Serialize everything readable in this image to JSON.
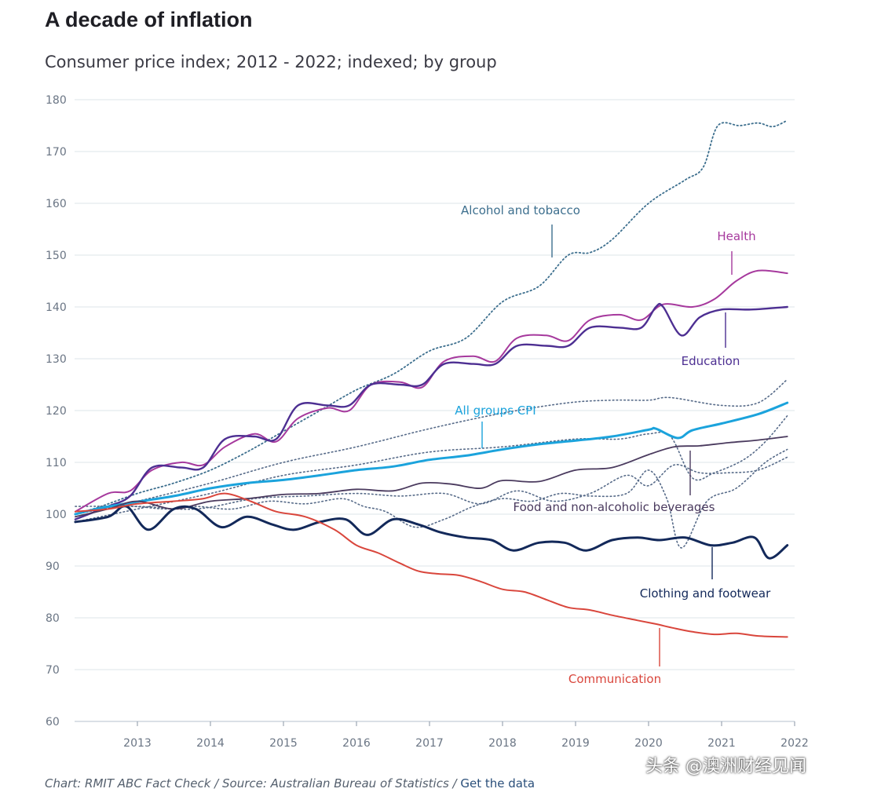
{
  "title": "A decade of inflation",
  "subtitle": "Consumer price index; 2012 - 2022; indexed; by group",
  "footer": {
    "source": "Chart: RMIT ABC Fact Check / Source: Australian Bureau of Statistics / ",
    "link": "Get the data"
  },
  "watermark": "头条 @澳洲财经见闻",
  "chart_data": {
    "type": "line",
    "title": "A decade of inflation",
    "subtitle": "Consumer price index; 2012 - 2022; indexed; by group",
    "xlabel": "",
    "ylabel": "",
    "xlim": [
      2012.14,
      2022.0
    ],
    "ylim": [
      60,
      180
    ],
    "yticks": [
      60,
      70,
      80,
      90,
      100,
      110,
      120,
      130,
      140,
      150,
      160,
      170,
      180
    ],
    "xticks": [
      2013,
      2014,
      2015,
      2016,
      2017,
      2018,
      2019,
      2020,
      2021,
      2022
    ],
    "grid": true,
    "colors": {
      "alcohol": "#3d6f8e",
      "health": "#a6399d",
      "education": "#4d2f92",
      "cpi": "#1ba3dc",
      "food": "#4a3a5e",
      "clothing": "#13295a",
      "communication": "#d9463c",
      "other": "#566a88"
    },
    "series": [
      {
        "name": "Alcohol and tobacco",
        "color": "alcohol",
        "dash": "dotted",
        "labelled": true,
        "x": [
          2012.15,
          2012.5,
          2013.0,
          2013.5,
          2014.0,
          2014.5,
          2015.0,
          2015.5,
          2016.0,
          2016.5,
          2017.0,
          2017.5,
          2018.0,
          2018.5,
          2018.9,
          2019.2,
          2019.5,
          2020.0,
          2020.5,
          2020.75,
          2020.95,
          2021.25,
          2021.5,
          2021.7,
          2021.9
        ],
        "y": [
          100,
          101.5,
          104,
          106,
          108.5,
          112,
          116,
          120,
          124,
          127,
          131.5,
          134,
          141,
          144,
          150,
          150.5,
          153,
          160,
          164.5,
          167,
          175,
          175,
          175.5,
          174.8,
          176
        ]
      },
      {
        "name": "Health",
        "color": "health",
        "dash": "solid",
        "labelled": true,
        "x": [
          2012.15,
          2012.6,
          2012.9,
          2013.2,
          2013.6,
          2013.9,
          2014.2,
          2014.6,
          2014.9,
          2015.2,
          2015.6,
          2015.9,
          2016.2,
          2016.6,
          2016.9,
          2017.2,
          2017.6,
          2017.9,
          2018.2,
          2018.6,
          2018.9,
          2019.2,
          2019.6,
          2019.9,
          2020.2,
          2020.6,
          2020.9,
          2021.2,
          2021.5,
          2021.9
        ],
        "y": [
          100.5,
          104,
          104.5,
          108.5,
          110,
          109.5,
          113,
          115.5,
          114,
          118.5,
          120.5,
          120,
          125,
          125.5,
          124.5,
          129.5,
          130.5,
          129.5,
          134,
          134.5,
          133.5,
          137.5,
          138.5,
          137.5,
          140.5,
          140,
          141.5,
          145,
          147,
          146.5
        ]
      },
      {
        "name": "Education",
        "color": "education",
        "dash": "solid",
        "labelled": true,
        "x": [
          2012.15,
          2012.6,
          2012.9,
          2013.2,
          2013.6,
          2013.9,
          2014.2,
          2014.6,
          2014.9,
          2015.2,
          2015.6,
          2015.9,
          2016.2,
          2016.6,
          2016.9,
          2017.2,
          2017.6,
          2017.9,
          2018.2,
          2018.6,
          2018.9,
          2019.2,
          2019.6,
          2019.9,
          2020.1,
          2020.2,
          2020.45,
          2020.7,
          2021.0,
          2021.4,
          2021.9
        ],
        "y": [
          99,
          101.5,
          103.5,
          109,
          109,
          109,
          114.5,
          115,
          114.5,
          121,
          121,
          121,
          125,
          125,
          125,
          129,
          129,
          129,
          132.5,
          132.5,
          132.5,
          136,
          136,
          136,
          140,
          140,
          134.5,
          138,
          139.5,
          139.5,
          140
        ]
      },
      {
        "name": "All groups CPI",
        "color": "cpi",
        "dash": "solid",
        "labelled": true,
        "x": [
          2012.15,
          2012.5,
          2013.0,
          2013.5,
          2014.0,
          2014.5,
          2015.0,
          2015.5,
          2016.0,
          2016.5,
          2017.0,
          2017.5,
          2018.0,
          2018.5,
          2019.0,
          2019.5,
          2020.0,
          2020.1,
          2020.4,
          2020.6,
          2021.0,
          2021.5,
          2021.9
        ],
        "y": [
          100,
          101.2,
          102.4,
          103.5,
          105,
          106,
          106.6,
          107.5,
          108.5,
          109.2,
          110.5,
          111.3,
          112.5,
          113.5,
          114.2,
          115,
          116.3,
          116.5,
          114.7,
          116.2,
          117.5,
          119.3,
          121.5
        ]
      },
      {
        "name": "Food and non-alcoholic beverages",
        "color": "food",
        "dash": "solid",
        "labelled": true,
        "x": [
          2012.15,
          2012.6,
          2013.0,
          2013.5,
          2014.0,
          2014.5,
          2015.0,
          2015.5,
          2016.0,
          2016.5,
          2016.9,
          2017.3,
          2017.7,
          2018.0,
          2018.5,
          2019.0,
          2019.5,
          2020.0,
          2020.35,
          2020.7,
          2021.1,
          2021.5,
          2021.9
        ],
        "y": [
          99.5,
          101,
          102.5,
          101,
          102.5,
          103,
          103.8,
          104,
          104.8,
          104.5,
          106,
          105.8,
          105,
          106.5,
          106.3,
          108.5,
          109,
          111.5,
          113,
          113.2,
          113.8,
          114.3,
          115
        ]
      },
      {
        "name": "Clothing and footwear",
        "color": "clothing",
        "dash": "solid",
        "labelled": true,
        "x": [
          2012.15,
          2012.6,
          2012.85,
          2013.15,
          2013.5,
          2013.8,
          2014.15,
          2014.5,
          2014.85,
          2015.15,
          2015.5,
          2015.85,
          2016.15,
          2016.5,
          2016.85,
          2017.15,
          2017.5,
          2017.85,
          2018.15,
          2018.5,
          2018.85,
          2019.15,
          2019.5,
          2019.85,
          2020.15,
          2020.5,
          2020.85,
          2021.15,
          2021.45,
          2021.65,
          2021.9
        ],
        "y": [
          98.5,
          99.5,
          101.5,
          97,
          101,
          101,
          97.5,
          99.5,
          98,
          97,
          98.5,
          99,
          96,
          99,
          98,
          96.5,
          95.5,
          95,
          93,
          94.5,
          94.5,
          93,
          95,
          95.5,
          95,
          95.5,
          94,
          94.5,
          95.5,
          91.5,
          94
        ]
      },
      {
        "name": "Communication",
        "color": "communication",
        "dash": "solid",
        "labelled": true,
        "x": [
          2012.15,
          2012.6,
          2013.0,
          2013.5,
          2013.9,
          2014.2,
          2014.55,
          2014.9,
          2015.3,
          2015.7,
          2016.0,
          2016.3,
          2016.6,
          2016.85,
          2017.1,
          2017.4,
          2017.7,
          2018.0,
          2018.3,
          2018.6,
          2018.9,
          2019.2,
          2019.5,
          2019.85,
          2020.1,
          2020.35,
          2020.6,
          2020.9,
          2021.2,
          2021.5,
          2021.9
        ],
        "y": [
          100.5,
          101,
          102,
          102.5,
          103,
          104,
          102.5,
          100.5,
          99.5,
          97,
          94,
          92.5,
          90.5,
          89,
          88.5,
          88.2,
          87,
          85.5,
          85,
          83.5,
          82,
          81.5,
          80.5,
          79.5,
          78.8,
          78,
          77.3,
          76.8,
          77,
          76.5,
          76.3
        ]
      },
      {
        "name": "",
        "color": "other",
        "dash": "dotted",
        "labelled": false,
        "x": [
          2012.15,
          2013.0,
          2014.0,
          2015.0,
          2016.0,
          2017.0,
          2018.0,
          2018.9,
          2019.5,
          2020.0,
          2020.3,
          2021.0,
          2021.5,
          2021.9
        ],
        "y": [
          100,
          102.5,
          106,
          110,
          113,
          116.5,
          119.5,
          121.5,
          122,
          122,
          122.5,
          121,
          121.5,
          126
        ]
      },
      {
        "name": "",
        "color": "other",
        "dash": "dotted",
        "labelled": false,
        "x": [
          2012.15,
          2013.0,
          2014.0,
          2015.0,
          2016.0,
          2017.0,
          2018.0,
          2019.0,
          2019.6,
          2020.0,
          2020.3,
          2020.6,
          2020.9,
          2021.3,
          2021.6,
          2021.9
        ],
        "y": [
          98.5,
          101,
          104,
          107.5,
          109.5,
          112,
          113,
          114.5,
          114.5,
          115.5,
          115,
          107,
          108,
          110.5,
          114,
          119
        ]
      },
      {
        "name": "",
        "color": "other",
        "dash": "dotted",
        "labelled": false,
        "x": [
          2012.15,
          2012.8,
          2013.4,
          2013.8,
          2014.3,
          2014.8,
          2015.3,
          2015.8,
          2016.1,
          2016.4,
          2016.8,
          2017.2,
          2017.6,
          2018.0,
          2018.4,
          2018.8,
          2019.2,
          2019.7,
          2020.0,
          2020.25,
          2020.45,
          2020.8,
          2021.2,
          2021.6,
          2021.9
        ],
        "y": [
          100,
          101.5,
          101,
          101.5,
          101,
          102.5,
          102,
          103,
          101.5,
          100.5,
          97.5,
          99,
          101.5,
          103,
          102.5,
          104,
          103.5,
          104,
          108.5,
          103,
          93.5,
          102.5,
          105,
          110,
          112.5
        ]
      },
      {
        "name": "",
        "color": "other",
        "dash": "dotted",
        "labelled": false,
        "x": [
          2012.15,
          2013.0,
          2013.8,
          2014.6,
          2015.3,
          2016.0,
          2016.6,
          2017.2,
          2017.7,
          2018.2,
          2018.7,
          2019.2,
          2019.7,
          2020.0,
          2020.35,
          2020.7,
          2021.1,
          2021.5,
          2021.9
        ],
        "y": [
          101.5,
          101.5,
          101,
          103,
          103.5,
          104,
          103.5,
          104,
          102,
          104.5,
          102.5,
          104,
          107.5,
          105.5,
          109.5,
          108,
          108,
          108.5,
          111
        ]
      }
    ],
    "labels": [
      {
        "text": "Alcohol and tobacco",
        "color": "alcohol"
      },
      {
        "text": "Health",
        "color": "health"
      },
      {
        "text": "Education",
        "color": "education"
      },
      {
        "text": "All groups CPI",
        "color": "cpi"
      },
      {
        "text": "Food and non-alcoholic beverages",
        "color": "food"
      },
      {
        "text": "Clothing and footwear",
        "color": "clothing"
      },
      {
        "text": "Communication",
        "color": "communication"
      }
    ]
  }
}
